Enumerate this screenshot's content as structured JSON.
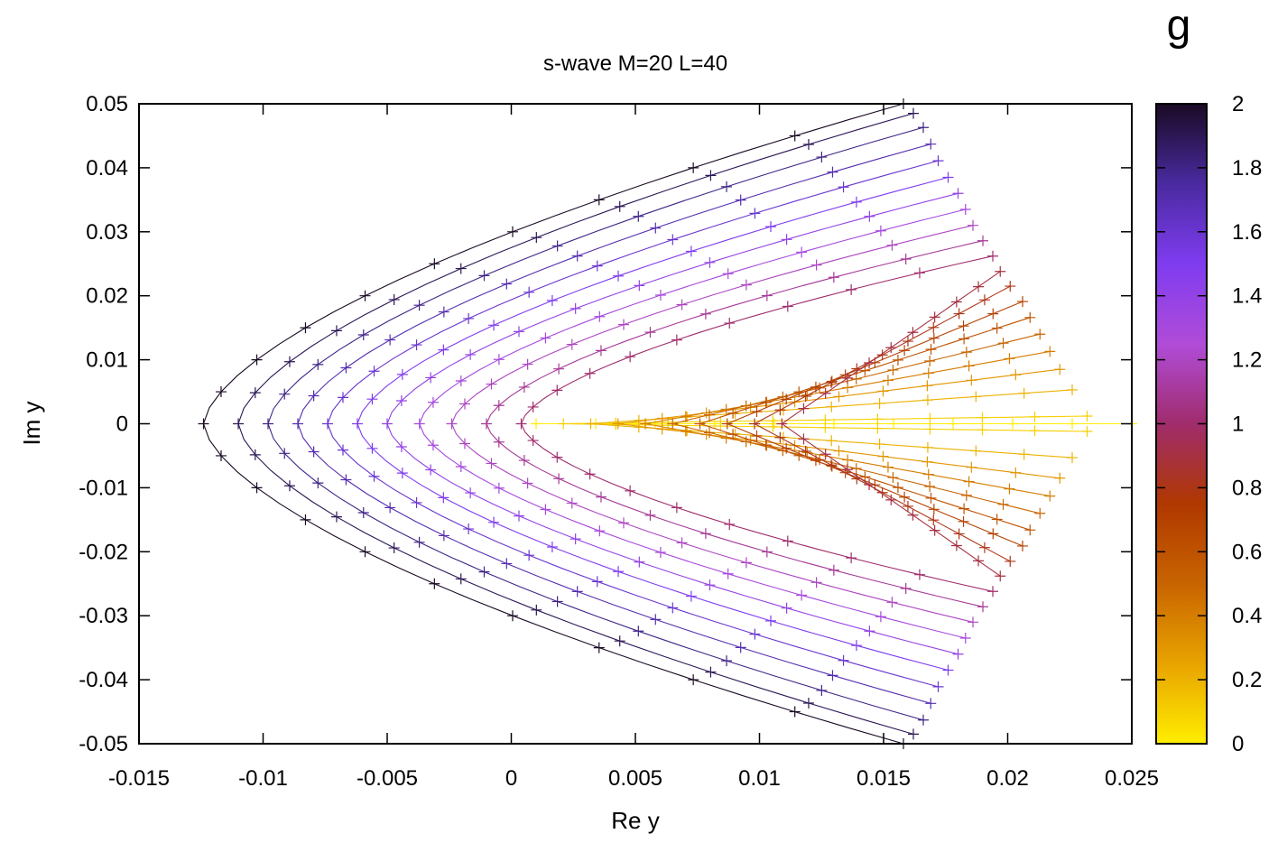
{
  "chart_data": {
    "type": "scatter",
    "title": "s-wave M=20 L=40",
    "xlabel": "Re y",
    "ylabel": "Im y",
    "xlim": [
      -0.015,
      0.025
    ],
    "ylim": [
      -0.05,
      0.05
    ],
    "x_ticks": [
      "-0.015",
      "-0.01",
      "-0.005",
      "0",
      "0.005",
      "0.01",
      "0.015",
      "0.02",
      "0.025"
    ],
    "y_ticks": [
      "0.05",
      "0.04",
      "0.03",
      "0.02",
      "0.01",
      "0",
      "-0.01",
      "-0.02",
      "-0.03",
      "-0.04",
      "-0.05"
    ],
    "colorbar": {
      "label": "g",
      "range": [
        0,
        2
      ],
      "ticks": [
        "2",
        "1.8",
        "1.6",
        "1.4",
        "1.2",
        "1",
        "0.8",
        "0.6",
        "0.4",
        "0.2",
        "0"
      ],
      "colors": [
        "#ffee00",
        "#e8a300",
        "#c86400",
        "#b03800",
        "#a02c6c",
        "#b04cd8",
        "#7f3cf0",
        "#4a2aa0",
        "#1a0a24"
      ]
    },
    "grid": false,
    "marker": "plus",
    "curve_family": {
      "description": "root trajectories in complex y-plane, one curve per g from 0 to 2 in steps of 0.1",
      "g_values": [
        0,
        0.1,
        0.2,
        0.3,
        0.4,
        0.5,
        0.6,
        0.7,
        0.8,
        0.9,
        1.0,
        1.1,
        1.2,
        1.3,
        1.4,
        1.5,
        1.6,
        1.7,
        1.8,
        1.9,
        2.0
      ],
      "vertex_x": [
        0.025,
        0.0232,
        0.0226,
        0.0221,
        0.0217,
        0.0213,
        0.0209,
        0.0206,
        0.0196,
        0.0188,
        0.0004,
        -0.001,
        -0.0024,
        -0.0037,
        -0.005,
        -0.0062,
        -0.0074,
        -0.0086,
        -0.0098,
        -0.011,
        -0.0124
      ],
      "end_x": [
        0.025,
        0.0232,
        0.0226,
        0.0221,
        0.0217,
        0.0213,
        0.0209,
        0.0206,
        0.0201,
        0.0197,
        0.0194,
        0.019,
        0.0186,
        0.0183,
        0.018,
        0.0176,
        0.0172,
        0.0169,
        0.0166,
        0.0162,
        0.0158
      ],
      "end_y": [
        0.0,
        0.0012,
        0.0053,
        0.0085,
        0.0113,
        0.014,
        0.0166,
        0.0191,
        0.0215,
        0.0238,
        0.0262,
        0.0286,
        0.031,
        0.0335,
        0.036,
        0.0385,
        0.0411,
        0.0437,
        0.0463,
        0.0485,
        0.05
      ]
    }
  }
}
